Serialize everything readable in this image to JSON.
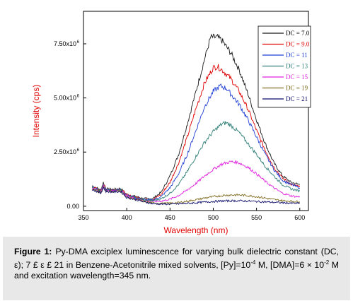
{
  "chart_data": {
    "type": "line",
    "xlabel": "Wavelength (nm)",
    "ylabel": "Intensity (cps)",
    "xlim": [
      350,
      610
    ],
    "ylim": [
      -200000,
      9000000
    ],
    "x_ticks": [
      {
        "value": 350,
        "label": "350"
      },
      {
        "value": 400,
        "label": "400"
      },
      {
        "value": 450,
        "label": "450"
      },
      {
        "value": 500,
        "label": "500"
      },
      {
        "value": 550,
        "label": "550"
      },
      {
        "value": 600,
        "label": "600"
      }
    ],
    "y_ticks": [
      {
        "value": 0,
        "label": "0.00"
      },
      {
        "value": 2500000,
        "label": "2.50x10",
        "exp": "6"
      },
      {
        "value": 5000000,
        "label": "5.00x10",
        "exp": "6"
      },
      {
        "value": 7500000,
        "label": "7.50x10",
        "exp": "6"
      }
    ],
    "grid": false,
    "legend_position": "top-right",
    "series": [
      {
        "name": "DC = 7.0",
        "color": "#1a1a1a",
        "x": [
          360,
          370,
          373,
          376,
          385,
          393,
          400,
          410,
          420,
          430,
          440,
          450,
          460,
          470,
          480,
          490,
          497,
          505,
          510,
          520,
          530,
          540,
          550,
          560,
          570,
          580,
          590,
          600
        ],
        "y": [
          950000,
          750000,
          1100000,
          800000,
          780000,
          820000,
          550000,
          450000,
          350000,
          350000,
          650000,
          1400000,
          2400000,
          3800000,
          5300000,
          6800000,
          7800000,
          7800000,
          7650000,
          7100000,
          6300000,
          5200000,
          4000000,
          2900000,
          2000000,
          1400000,
          1100000,
          1000000
        ]
      },
      {
        "name": "DC = 9.0",
        "color": "#e00000",
        "x": [
          360,
          370,
          373,
          376,
          385,
          393,
          400,
          410,
          420,
          430,
          440,
          450,
          460,
          470,
          480,
          490,
          500,
          505,
          510,
          520,
          530,
          540,
          550,
          560,
          570,
          580,
          590,
          600
        ],
        "y": [
          900000,
          700000,
          1050000,
          780000,
          750000,
          800000,
          520000,
          420000,
          320000,
          300000,
          550000,
          1100000,
          2000000,
          3200000,
          4500000,
          5700000,
          6400000,
          6450000,
          6300000,
          5900000,
          5300000,
          4500000,
          3500000,
          2600000,
          1800000,
          1300000,
          1000000,
          900000
        ]
      },
      {
        "name": "DC = 11",
        "color": "#1f3fd6",
        "x": [
          360,
          370,
          373,
          376,
          385,
          393,
          400,
          410,
          420,
          430,
          440,
          450,
          460,
          470,
          480,
          490,
          500,
          508,
          515,
          520,
          530,
          540,
          550,
          560,
          570,
          580,
          590,
          600
        ],
        "y": [
          880000,
          680000,
          1000000,
          760000,
          730000,
          780000,
          500000,
          400000,
          300000,
          280000,
          450000,
          850000,
          1500000,
          2400000,
          3500000,
          4600000,
          5300000,
          5550000,
          5450000,
          5200000,
          4700000,
          4000000,
          3200000,
          2400000,
          1700000,
          1200000,
          1000000,
          850000
        ]
      },
      {
        "name": "DC = 13",
        "color": "#2f7f77",
        "x": [
          360,
          370,
          373,
          376,
          385,
          393,
          400,
          410,
          420,
          430,
          440,
          450,
          460,
          470,
          480,
          490,
          500,
          510,
          515,
          520,
          530,
          540,
          550,
          560,
          570,
          580,
          590,
          600
        ],
        "y": [
          870000,
          670000,
          980000,
          740000,
          720000,
          760000,
          480000,
          380000,
          280000,
          250000,
          350000,
          600000,
          1000000,
          1600000,
          2300000,
          2950000,
          3450000,
          3800000,
          3850000,
          3750000,
          3400000,
          2900000,
          2400000,
          1850000,
          1400000,
          1000000,
          800000,
          700000
        ]
      },
      {
        "name": "DC = 15",
        "color": "#e023e0",
        "x": [
          360,
          370,
          373,
          376,
          385,
          393,
          400,
          410,
          420,
          430,
          440,
          450,
          460,
          470,
          480,
          490,
          500,
          510,
          520,
          525,
          530,
          540,
          550,
          560,
          570,
          580,
          590,
          600
        ],
        "y": [
          850000,
          650000,
          950000,
          720000,
          700000,
          740000,
          460000,
          360000,
          250000,
          200000,
          240000,
          320000,
          500000,
          750000,
          1050000,
          1400000,
          1700000,
          1950000,
          2050000,
          2050000,
          2000000,
          1800000,
          1500000,
          1150000,
          850000,
          600000,
          480000,
          420000
        ]
      },
      {
        "name": "DC = 19",
        "color": "#7f6b1e",
        "x": [
          360,
          370,
          373,
          376,
          385,
          393,
          400,
          410,
          420,
          430,
          440,
          450,
          460,
          470,
          480,
          490,
          500,
          510,
          520,
          530,
          540,
          550,
          560,
          570,
          580,
          590,
          600
        ],
        "y": [
          800000,
          620000,
          900000,
          700000,
          680000,
          700000,
          420000,
          330000,
          220000,
          150000,
          130000,
          140000,
          170000,
          230000,
          300000,
          380000,
          440000,
          490000,
          520000,
          520000,
          490000,
          440000,
          380000,
          310000,
          260000,
          230000,
          210000
        ]
      },
      {
        "name": "DC = 21",
        "color": "#0a0a6a",
        "x": [
          360,
          370,
          373,
          376,
          385,
          393,
          400,
          410,
          420,
          430,
          440,
          450,
          460,
          470,
          480,
          490,
          500,
          510,
          520,
          530,
          540,
          550,
          560,
          570,
          580,
          590,
          600
        ],
        "y": [
          780000,
          600000,
          870000,
          680000,
          660000,
          680000,
          400000,
          310000,
          200000,
          120000,
          100000,
          100000,
          110000,
          130000,
          160000,
          190000,
          220000,
          240000,
          250000,
          250000,
          240000,
          220000,
          200000,
          180000,
          160000,
          140000,
          130000
        ]
      }
    ]
  },
  "caption": {
    "label": "Figure 1:",
    "text": "Py-DMA exciplex luminescence for varying bulk dielectric constant (DC, ε); 7 £ ε £ 21 in Benzene-Acetonitrile mixed solvents, [Py]=10",
    "py_exp": "-4",
    "text2": " M, [DMA]=6 × 10",
    "dma_exp": "-2",
    "text3": " M and excitation wavelength=345 nm."
  }
}
